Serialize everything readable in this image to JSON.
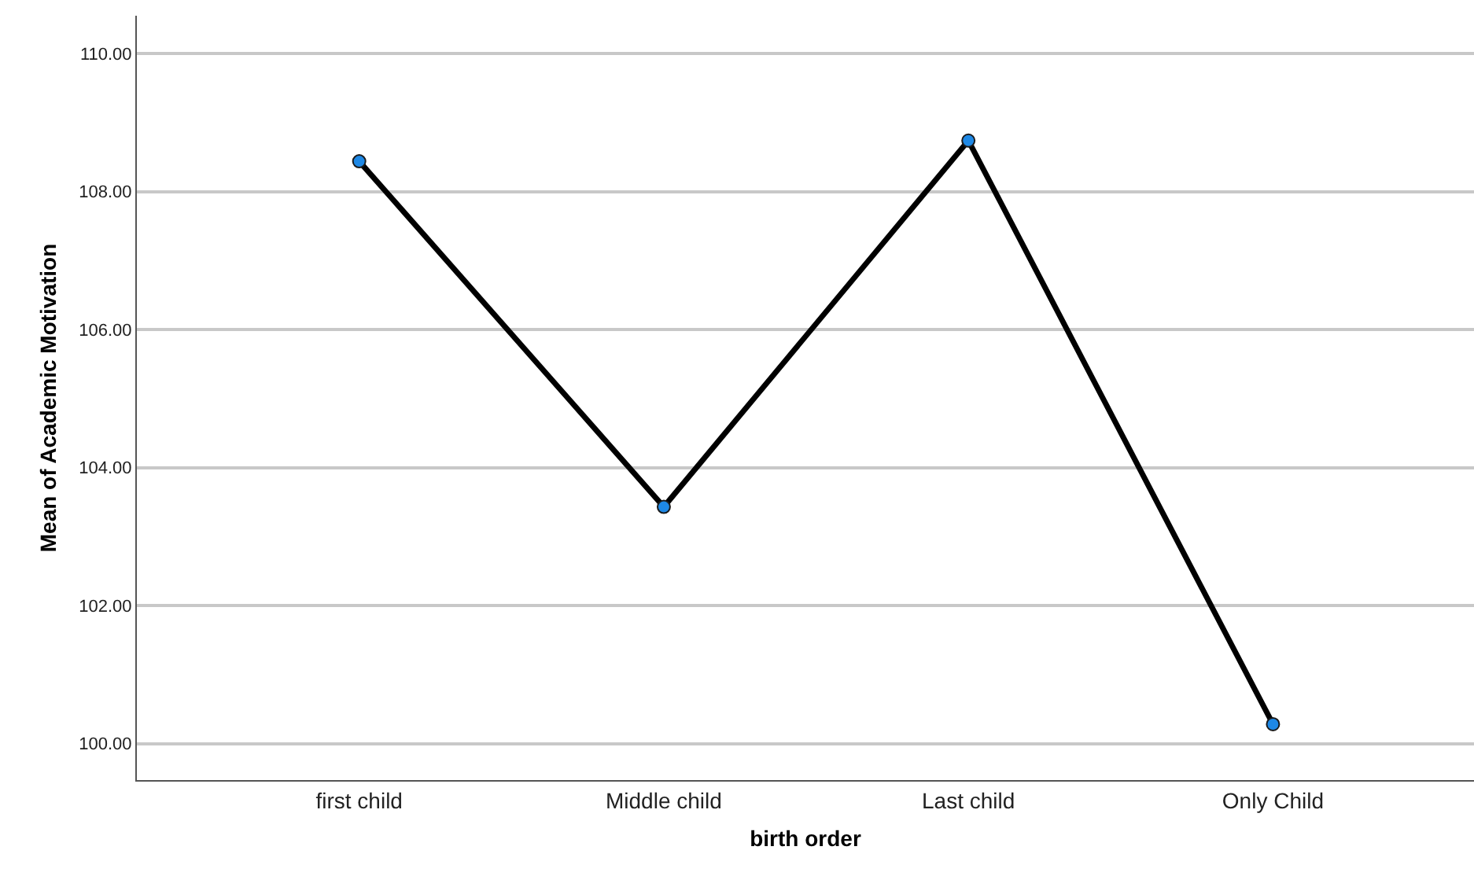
{
  "chart_data": {
    "type": "line",
    "xlabel": "birth order",
    "ylabel": "Mean of Academic Motivation",
    "categories": [
      "first child",
      "Middle child",
      "Last child",
      "Only Child"
    ],
    "series": [
      {
        "color": "#000000",
        "values": [
          108.44,
          103.43,
          108.74,
          100.28
        ]
      }
    ],
    "marker": "circle",
    "line_style": "solid",
    "ylim": [
      99.47,
      110.55
    ],
    "yticks": [
      {
        "value": 100,
        "label": "100.00"
      },
      {
        "value": 102,
        "label": "102.00"
      },
      {
        "value": 104,
        "label": "104.00"
      },
      {
        "value": 106,
        "label": "106.00"
      },
      {
        "value": 108,
        "label": "108.00"
      },
      {
        "value": 110,
        "label": "110.00"
      }
    ],
    "grid": "y"
  }
}
